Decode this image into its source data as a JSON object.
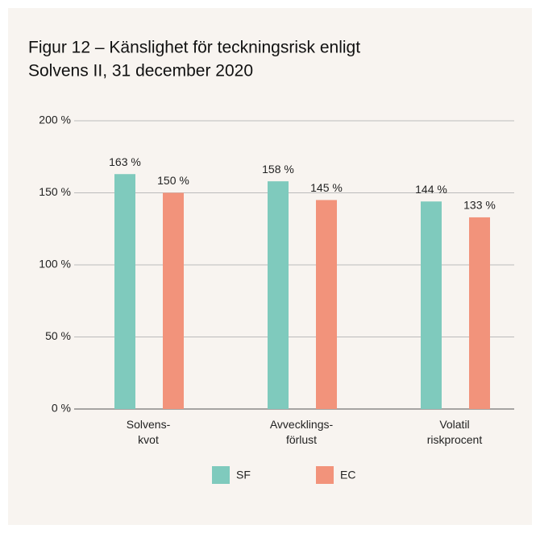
{
  "chart_data": {
    "type": "bar",
    "title": [
      "Figur 12 – Känslighet för teckningsrisk enligt",
      "Solvens II, 31 december 2020"
    ],
    "categories": [
      "Solvens-\nkvot",
      "Avvecklings-\nförlust",
      "Volatil\nriskprocent"
    ],
    "series": [
      {
        "name": "SF",
        "color": "#7fcabd",
        "values": [
          163,
          158,
          144
        ],
        "value_labels": [
          "163 %",
          "158 %",
          "144 %"
        ]
      },
      {
        "name": "EC",
        "color": "#f2937b",
        "values": [
          150,
          145,
          133
        ],
        "value_labels": [
          "150 %",
          "145 %",
          "133 %"
        ]
      }
    ],
    "ylim": [
      0,
      200
    ],
    "yticks": [
      {
        "value": 0,
        "label": "0 %"
      },
      {
        "value": 50,
        "label": "50 %"
      },
      {
        "value": 100,
        "label": "100 %"
      },
      {
        "value": 150,
        "label": "150 %"
      },
      {
        "value": 200,
        "label": "200 %"
      }
    ],
    "grid": true
  }
}
